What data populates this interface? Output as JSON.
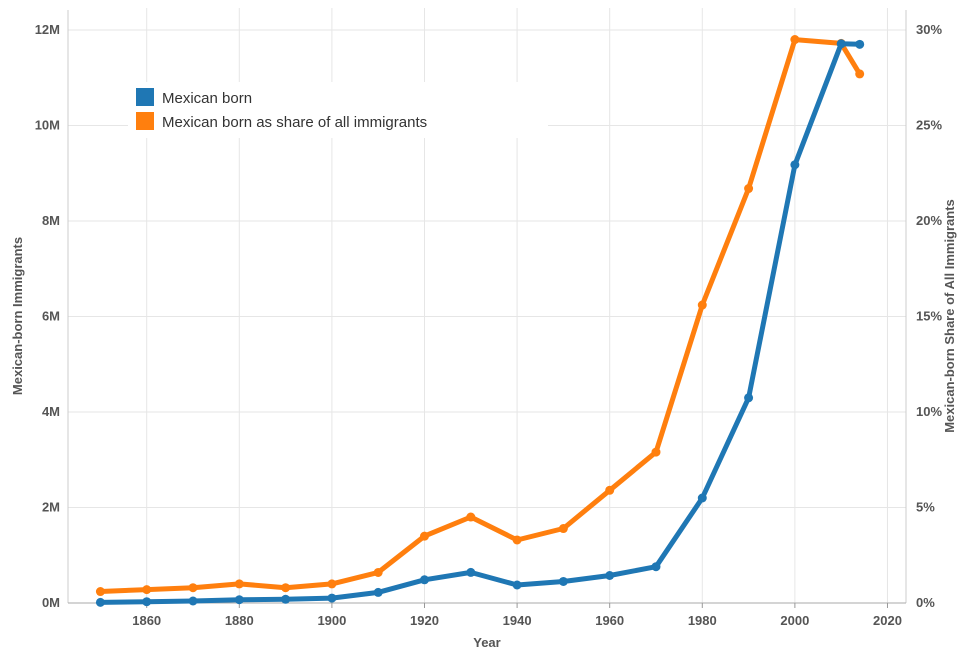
{
  "chart_data": {
    "type": "line",
    "xlabel": "Year",
    "ylabel_left": "Mexican-born Immigrants",
    "ylabel_right": "Mexican-born Share of All Immigrants",
    "xlim": [
      1843,
      2024
    ],
    "ylim_left": [
      0,
      12000000
    ],
    "ylim_right": [
      0,
      30
    ],
    "x_ticks": [
      1860,
      1880,
      1900,
      1920,
      1940,
      1960,
      1980,
      2000,
      2020
    ],
    "x_tick_labels": [
      "1860",
      "1880",
      "1900",
      "1920",
      "1940",
      "1960",
      "1980",
      "2000",
      "2020"
    ],
    "y_left_ticks": [
      0,
      2000000,
      4000000,
      6000000,
      8000000,
      10000000,
      12000000
    ],
    "y_left_tick_labels": [
      "0M",
      "2M",
      "4M",
      "6M",
      "8M",
      "10M",
      "12M"
    ],
    "y_right_ticks": [
      0,
      5,
      10,
      15,
      20,
      25,
      30
    ],
    "y_right_tick_labels": [
      "0%",
      "5%",
      "10%",
      "15%",
      "20%",
      "25%",
      "30%"
    ],
    "grid": true,
    "legend_position": "top-left",
    "series": [
      {
        "name": "Mexican born",
        "axis": "left",
        "color": "#1f77b4",
        "x": [
          1850,
          1860,
          1870,
          1880,
          1890,
          1900,
          1910,
          1920,
          1930,
          1940,
          1950,
          1960,
          1970,
          1980,
          1990,
          2000,
          2010,
          2014
        ],
        "values": [
          13000,
          27000,
          42000,
          68000,
          78000,
          103000,
          222000,
          486000,
          641000,
          377000,
          451000,
          576000,
          760000,
          2199000,
          4298000,
          9178000,
          11711000,
          11700000
        ]
      },
      {
        "name": "Mexican born as share of all immigrants",
        "axis": "right",
        "color": "#ff7f0e",
        "x": [
          1850,
          1860,
          1870,
          1880,
          1890,
          1900,
          1910,
          1920,
          1930,
          1940,
          1950,
          1960,
          1970,
          1980,
          1990,
          2000,
          2010,
          2014
        ],
        "values": [
          0.6,
          0.7,
          0.8,
          1.0,
          0.8,
          1.0,
          1.6,
          3.5,
          4.5,
          3.3,
          3.9,
          5.9,
          7.9,
          15.6,
          21.7,
          29.5,
          29.3,
          27.7
        ]
      }
    ]
  }
}
